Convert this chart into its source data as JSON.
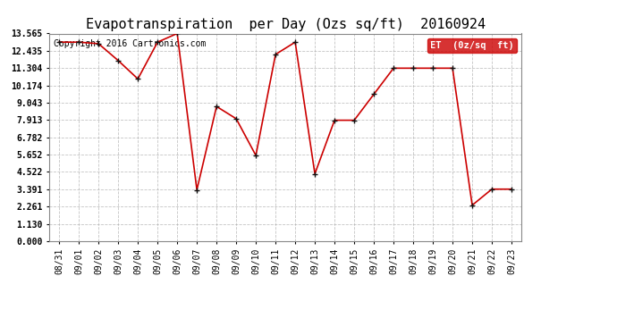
{
  "title": "Evapotranspiration  per Day (Ozs sq/ft)  20160924",
  "copyright_text": "Copyright 2016 Cartronics.com",
  "legend_label": "ET  (0z/sq  ft)",
  "x_labels": [
    "08/31",
    "09/01",
    "09/02",
    "09/03",
    "09/04",
    "09/05",
    "09/06",
    "09/07",
    "09/08",
    "09/09",
    "09/10",
    "09/11",
    "09/12",
    "09/13",
    "09/14",
    "09/15",
    "09/16",
    "09/17",
    "09/18",
    "09/19",
    "09/20",
    "09/21",
    "09/22",
    "09/23"
  ],
  "y_values": [
    13.0,
    13.0,
    12.9,
    11.8,
    10.6,
    13.0,
    13.565,
    3.35,
    8.8,
    8.0,
    5.6,
    12.2,
    13.0,
    4.4,
    7.9,
    7.9,
    9.6,
    11.3,
    11.3,
    11.3,
    11.3,
    2.35,
    3.4,
    3.4
  ],
  "y_ticks": [
    0.0,
    1.13,
    2.261,
    3.391,
    4.522,
    5.652,
    6.782,
    7.913,
    9.043,
    10.174,
    11.304,
    12.435,
    13.565
  ],
  "ylim_min": 0.0,
  "ylim_max": 13.565,
  "line_color": "#cc0000",
  "marker_color": "#111111",
  "background_color": "#ffffff",
  "legend_bg": "#cc0000",
  "legend_text_color": "#ffffff",
  "title_fontsize": 11,
  "axis_fontsize": 7,
  "copyright_fontsize": 7,
  "legend_fontsize": 7.5
}
